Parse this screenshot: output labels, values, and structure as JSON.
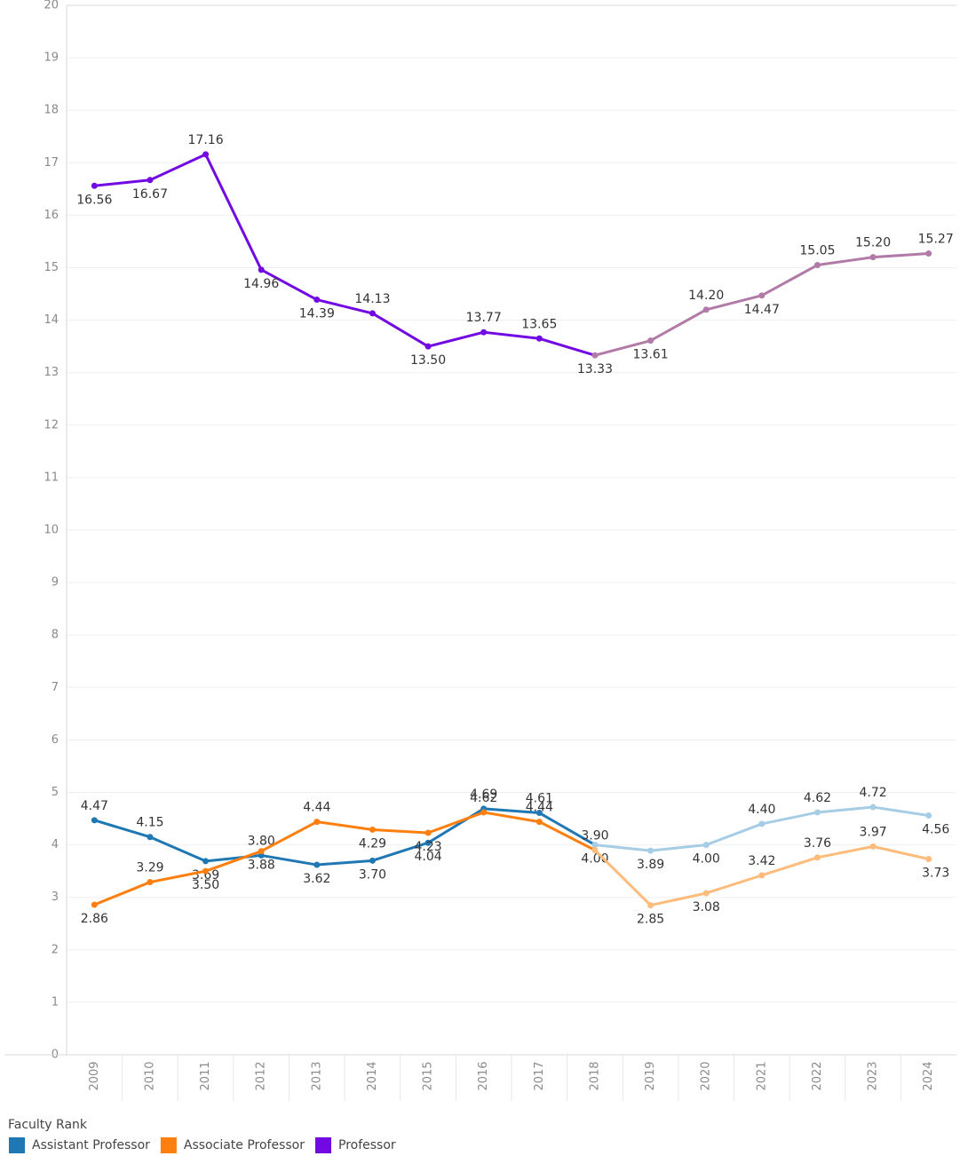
{
  "chart_data": {
    "type": "line",
    "categories": [
      "2009",
      "2010",
      "2011",
      "2012",
      "2013",
      "2014",
      "2015",
      "2016",
      "2017",
      "2018",
      "2019",
      "2020",
      "2021",
      "2022",
      "2023",
      "2024"
    ],
    "faded_from": "2018",
    "legend_title": "Faculty Rank",
    "ylim": [
      0,
      20
    ],
    "yticks": [
      0,
      1,
      2,
      3,
      4,
      5,
      6,
      7,
      8,
      9,
      10,
      11,
      12,
      13,
      14,
      15,
      16,
      17,
      18,
      19,
      20
    ],
    "grid": true,
    "legend": "bottom-left",
    "series": [
      {
        "name": "Assistant Professor",
        "color": "#1f77b4",
        "faded_color": "#a6cde6",
        "values": [
          4.47,
          4.15,
          3.69,
          3.8,
          3.62,
          3.7,
          4.04,
          4.69,
          4.61,
          4.0,
          3.89,
          4.0,
          4.4,
          4.62,
          4.72,
          4.56
        ],
        "value_labels": [
          "4.47",
          "4.15",
          "3.69",
          "3.80",
          "3.62",
          "3.70",
          "4.04",
          "4.69",
          "4.61",
          "4.00",
          "3.89",
          "4.00",
          "4.40",
          "4.62",
          "4.72",
          "4.56"
        ]
      },
      {
        "name": "Associate Professor",
        "color": "#ff7f0e",
        "faded_color": "#fdbb7c",
        "values": [
          2.86,
          3.29,
          3.5,
          3.88,
          4.44,
          4.29,
          4.23,
          4.62,
          4.44,
          3.9,
          2.85,
          3.08,
          3.42,
          3.76,
          3.97,
          3.73
        ],
        "value_labels": [
          "2.86",
          "3.29",
          "3.50",
          "3.88",
          "4.44",
          "4.29",
          "4.23",
          "4.62",
          "4.44",
          "3.90",
          "2.85",
          "3.08",
          "3.42",
          "3.76",
          "3.97",
          "3.73"
        ]
      },
      {
        "name": "Professor",
        "color": "#7209e3",
        "faded_color": "#b27aa6",
        "values": [
          16.56,
          16.67,
          17.16,
          14.96,
          14.39,
          14.13,
          13.5,
          13.77,
          13.65,
          13.33,
          13.61,
          14.2,
          14.47,
          15.05,
          15.2,
          15.27
        ],
        "value_labels": [
          "16.56",
          "16.67",
          "17.16",
          "14.96",
          "14.39",
          "14.13",
          "13.50",
          "13.77",
          "13.65",
          "13.33",
          "13.61",
          "14.20",
          "14.47",
          "15.05",
          "15.20",
          "15.27"
        ]
      }
    ]
  }
}
